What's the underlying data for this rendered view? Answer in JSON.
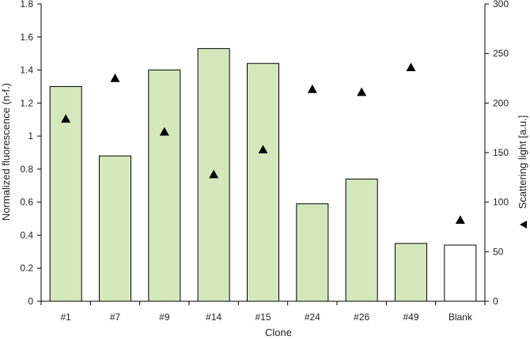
{
  "chart_data": {
    "type": "bar",
    "categories": [
      "#1",
      "#7",
      "#9",
      "#14",
      "#15",
      "#24",
      "#26",
      "#49",
      "Blank"
    ],
    "series": [
      {
        "axis": "left",
        "kind": "bar",
        "values": [
          1.3,
          0.88,
          1.4,
          1.53,
          1.44,
          0.59,
          0.74,
          0.35,
          0.34
        ],
        "fill_colors": [
          "#d5e8bc",
          "#d5e8bc",
          "#d5e8bc",
          "#d5e8bc",
          "#d5e8bc",
          "#d5e8bc",
          "#d5e8bc",
          "#d5e8bc",
          "#ffffff"
        ]
      },
      {
        "axis": "right",
        "kind": "scatter",
        "marker": "triangle",
        "values": [
          184,
          225,
          171,
          128,
          153,
          214,
          211,
          236,
          82
        ]
      }
    ],
    "xlabel": "Clone",
    "ylabel": "Normalized fluorescence (n-f.)",
    "y2label": "Scattering light [a.u.]",
    "y2label_marker": "triangle",
    "ylim": [
      0,
      1.8
    ],
    "y2lim": [
      0,
      300
    ],
    "yticks": [
      "0",
      "0.2",
      "0.4",
      "0.6",
      "0.8",
      "1",
      "1.2",
      "1.4",
      "1.6",
      "1.8"
    ],
    "y2ticks": [
      "0",
      "50",
      "100",
      "150",
      "200",
      "250",
      "300"
    ],
    "grid": false,
    "colors": {
      "bar_edge": "#000000",
      "marker": "#000000",
      "axis": "#000000"
    }
  }
}
